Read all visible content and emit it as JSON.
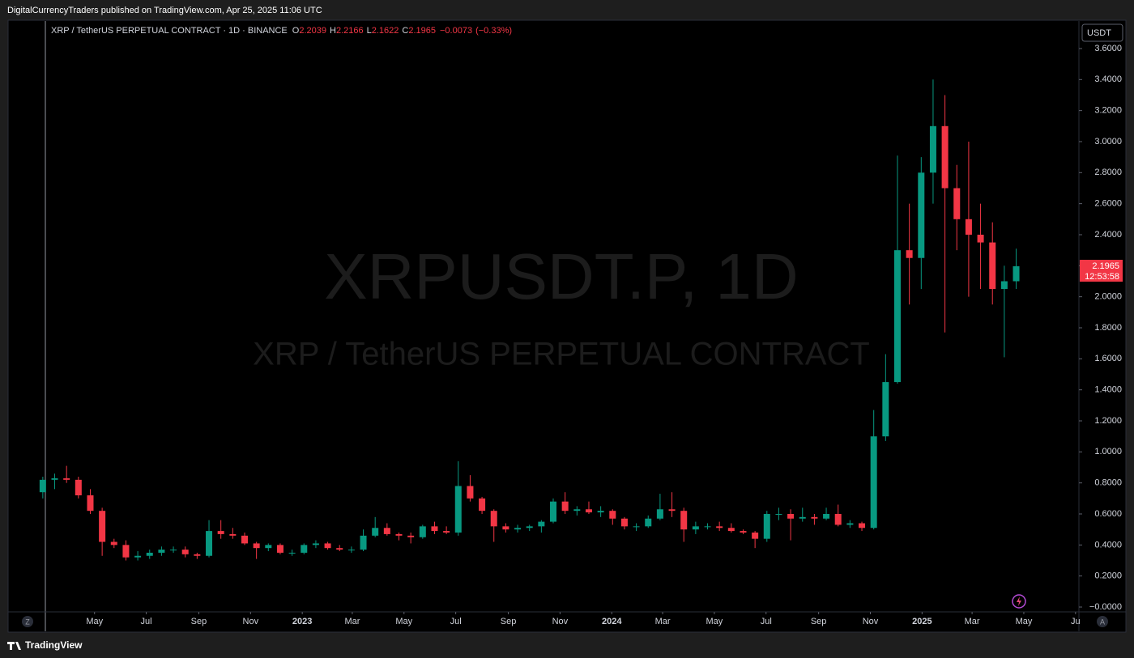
{
  "header": {
    "publisher_line": "DigitalCurrencyTraders published on TradingView.com, Apr 25, 2025 11:06 UTC"
  },
  "chart_data": {
    "type": "candlestick",
    "title": "XRP / TetherUS PERPETUAL CONTRACT · 1D · BINANCE",
    "watermark": "XRPUSDT.P, 1D",
    "watermark_subtitle": "XRP / TetherUS PERPETUAL CONTRACT",
    "ohlc_labels": [
      "O",
      "H",
      "L",
      "C"
    ],
    "ohlc_values": [
      2.2039,
      2.2166,
      2.1622,
      2.1965
    ],
    "change": {
      "value": -0.0073,
      "label": "−0.0073"
    },
    "change_percent": {
      "value": -0.33,
      "label": "(−0.33%)"
    },
    "currency": "USDT",
    "countdown": "12:53:58",
    "up_color": "#089981",
    "down_color": "#f23645",
    "x": [
      0,
      14,
      28,
      42,
      56,
      70,
      84,
      98,
      112,
      126,
      140,
      154,
      168,
      182,
      196,
      210,
      224,
      238,
      252,
      266,
      280,
      294,
      308,
      322,
      336,
      350,
      364,
      378,
      392,
      406,
      420,
      434,
      448,
      462,
      476,
      490,
      504,
      518,
      532,
      546,
      560,
      574,
      588,
      602,
      616,
      630,
      644,
      658,
      672,
      686,
      700,
      714,
      728,
      742,
      756,
      770,
      784,
      798,
      812,
      826,
      840,
      854,
      868,
      882,
      896,
      910,
      924,
      938,
      952,
      966,
      980,
      994,
      1008,
      1022,
      1036,
      1050,
      1064,
      1078,
      1092,
      1106,
      1120,
      1134,
      1148
    ],
    "open": [
      0.74,
      0.82,
      0.83,
      0.82,
      0.72,
      0.62,
      0.42,
      0.4,
      0.32,
      0.33,
      0.35,
      0.37,
      0.37,
      0.34,
      0.33,
      0.49,
      0.47,
      0.46,
      0.41,
      0.38,
      0.4,
      0.35,
      0.35,
      0.4,
      0.41,
      0.38,
      0.37,
      0.37,
      0.46,
      0.51,
      0.47,
      0.46,
      0.45,
      0.52,
      0.49,
      0.48,
      0.78,
      0.7,
      0.62,
      0.52,
      0.5,
      0.51,
      0.52,
      0.55,
      0.68,
      0.62,
      0.63,
      0.61,
      0.62,
      0.57,
      0.52,
      0.52,
      0.57,
      0.63,
      0.62,
      0.5,
      0.52,
      0.52,
      0.51,
      0.49,
      0.48,
      0.44,
      0.6,
      0.6,
      0.57,
      0.58,
      0.57,
      0.6,
      0.53,
      0.54,
      0.51,
      1.1,
      1.45,
      2.3,
      2.25,
      2.8,
      3.1,
      2.7,
      2.5,
      2.4,
      2.35,
      2.05,
      2.1
    ],
    "high": [
      0.84,
      0.86,
      0.91,
      0.84,
      0.76,
      0.64,
      0.44,
      0.43,
      0.36,
      0.37,
      0.39,
      0.39,
      0.39,
      0.35,
      0.56,
      0.56,
      0.51,
      0.48,
      0.42,
      0.41,
      0.41,
      0.37,
      0.41,
      0.43,
      0.42,
      0.4,
      0.39,
      0.5,
      0.58,
      0.54,
      0.48,
      0.48,
      0.53,
      0.55,
      0.52,
      0.94,
      0.85,
      0.71,
      0.63,
      0.54,
      0.53,
      0.53,
      0.56,
      0.7,
      0.74,
      0.65,
      0.68,
      0.65,
      0.63,
      0.58,
      0.54,
      0.59,
      0.73,
      0.74,
      0.64,
      0.55,
      0.54,
      0.55,
      0.54,
      0.5,
      0.49,
      0.62,
      0.64,
      0.63,
      0.64,
      0.6,
      0.64,
      0.66,
      0.56,
      0.55,
      1.27,
      1.63,
      2.91,
      2.6,
      2.9,
      3.4,
      3.3,
      2.85,
      3.0,
      2.6,
      2.48,
      2.2,
      2.31
    ],
    "low": [
      0.7,
      0.76,
      0.8,
      0.7,
      0.6,
      0.33,
      0.38,
      0.3,
      0.3,
      0.31,
      0.33,
      0.35,
      0.32,
      0.31,
      0.32,
      0.44,
      0.44,
      0.4,
      0.31,
      0.36,
      0.34,
      0.33,
      0.34,
      0.38,
      0.37,
      0.36,
      0.35,
      0.36,
      0.45,
      0.46,
      0.43,
      0.41,
      0.44,
      0.47,
      0.47,
      0.46,
      0.68,
      0.6,
      0.42,
      0.48,
      0.48,
      0.49,
      0.48,
      0.54,
      0.6,
      0.59,
      0.6,
      0.58,
      0.53,
      0.5,
      0.49,
      0.51,
      0.56,
      0.58,
      0.42,
      0.47,
      0.5,
      0.49,
      0.48,
      0.47,
      0.38,
      0.42,
      0.56,
      0.43,
      0.55,
      0.53,
      0.56,
      0.52,
      0.51,
      0.49,
      0.5,
      1.07,
      1.44,
      1.95,
      2.05,
      2.6,
      1.77,
      2.3,
      2.0,
      2.05,
      1.95,
      1.61,
      2.05
    ],
    "close": [
      0.82,
      0.83,
      0.82,
      0.72,
      0.62,
      0.42,
      0.4,
      0.32,
      0.33,
      0.35,
      0.37,
      0.37,
      0.34,
      0.33,
      0.49,
      0.47,
      0.46,
      0.41,
      0.38,
      0.4,
      0.35,
      0.35,
      0.4,
      0.41,
      0.38,
      0.37,
      0.37,
      0.46,
      0.51,
      0.47,
      0.46,
      0.45,
      0.52,
      0.49,
      0.48,
      0.78,
      0.7,
      0.62,
      0.52,
      0.5,
      0.51,
      0.52,
      0.55,
      0.68,
      0.62,
      0.63,
      0.61,
      0.62,
      0.57,
      0.52,
      0.52,
      0.57,
      0.63,
      0.62,
      0.5,
      0.52,
      0.52,
      0.51,
      0.49,
      0.48,
      0.44,
      0.6,
      0.6,
      0.57,
      0.58,
      0.57,
      0.6,
      0.53,
      0.54,
      0.51,
      1.1,
      1.45,
      2.3,
      2.25,
      2.8,
      3.1,
      2.7,
      2.5,
      2.4,
      2.35,
      2.05,
      2.1,
      2.1965
    ],
    "xlim": [
      3,
      1222
    ],
    "xticks": [
      {
        "value": 61,
        "label": "May"
      },
      {
        "value": 122,
        "label": "Jul"
      },
      {
        "value": 184,
        "label": "Sep"
      },
      {
        "value": 245,
        "label": "Nov"
      },
      {
        "value": 306,
        "label": "2023"
      },
      {
        "value": 365,
        "label": "Mar"
      },
      {
        "value": 426,
        "label": "May"
      },
      {
        "value": 487,
        "label": "Jul"
      },
      {
        "value": 549,
        "label": "Sep"
      },
      {
        "value": 610,
        "label": "Nov"
      },
      {
        "value": 671,
        "label": "2024"
      },
      {
        "value": 731,
        "label": "Mar"
      },
      {
        "value": 792,
        "label": "May"
      },
      {
        "value": 853,
        "label": "Jul"
      },
      {
        "value": 915,
        "label": "Sep"
      },
      {
        "value": 976,
        "label": "Nov"
      },
      {
        "value": 1037,
        "label": "2025"
      },
      {
        "value": 1096,
        "label": "Mar"
      },
      {
        "value": 1157,
        "label": "May"
      },
      {
        "value": 1218,
        "label": "Ju"
      }
    ],
    "ylim": [
      -0.026,
      3.772
    ],
    "yticks": [
      {
        "value": 0,
        "label": "−0.0000"
      },
      {
        "value": 0.2,
        "label": "0.2000"
      },
      {
        "value": 0.4,
        "label": "0.4000"
      },
      {
        "value": 0.6,
        "label": "0.6000"
      },
      {
        "value": 0.8,
        "label": "0.8000"
      },
      {
        "value": 1.0,
        "label": "1.0000"
      },
      {
        "value": 1.2,
        "label": "1.2000"
      },
      {
        "value": 1.4,
        "label": "1.4000"
      },
      {
        "value": 1.6,
        "label": "1.6000"
      },
      {
        "value": 1.8,
        "label": "1.8000"
      },
      {
        "value": 2.0,
        "label": "2.0000"
      },
      {
        "value": 2.2,
        "label": "2.2000"
      },
      {
        "value": 2.4,
        "label": "2.4000"
      },
      {
        "value": 2.6,
        "label": "2.6000"
      },
      {
        "value": 2.8,
        "label": "2.8000"
      },
      {
        "value": 3.0,
        "label": "3.0000"
      },
      {
        "value": 3.2,
        "label": "3.2000"
      },
      {
        "value": 3.4,
        "label": "3.4000"
      },
      {
        "value": 3.6,
        "label": "3.6000"
      }
    ]
  },
  "controls": {
    "scale_left": "Z",
    "scale_auto": "A"
  },
  "footer": {
    "brand": "TradingView"
  }
}
